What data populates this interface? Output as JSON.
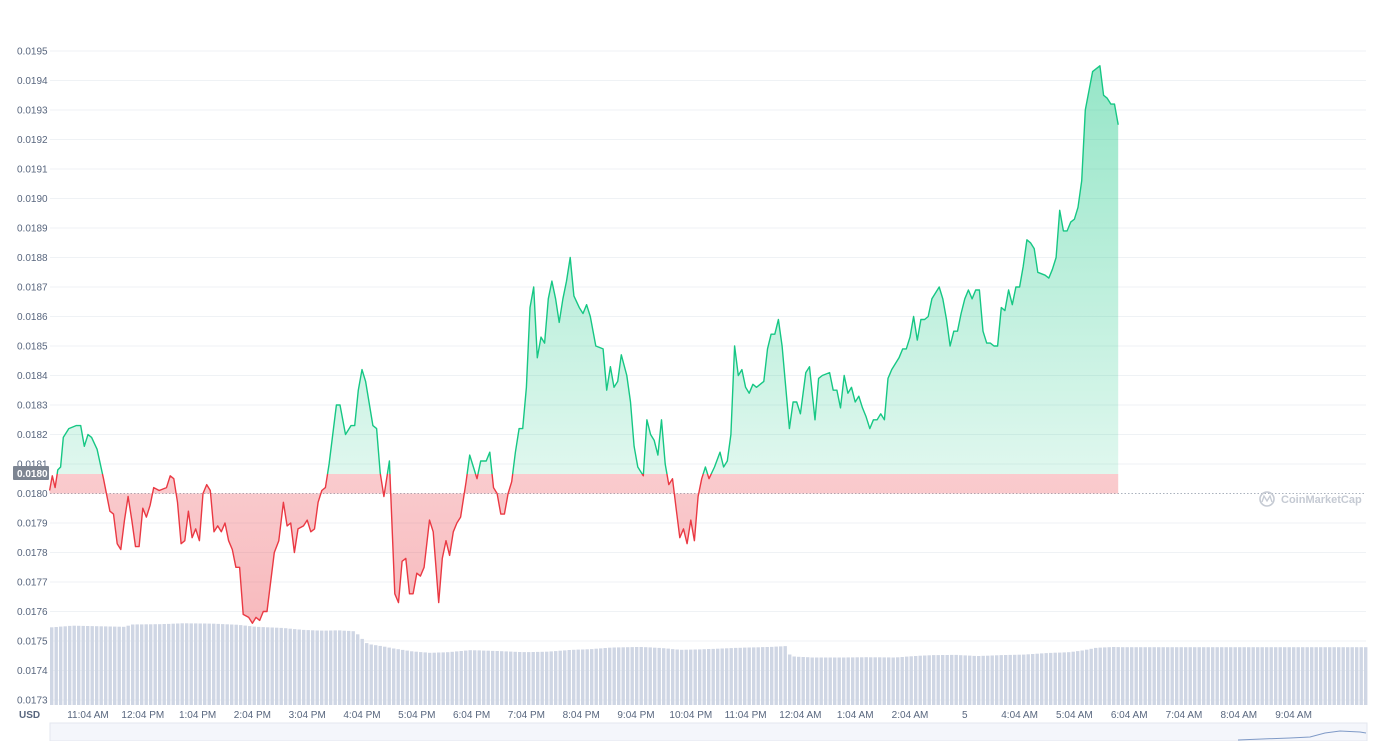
{
  "chart_data": {
    "type": "line",
    "y_unit": "USD",
    "ylim": [
      0.01722,
      0.01955
    ],
    "y_ticks": [
      "0.0173",
      "0.0174",
      "0.0175",
      "0.0176",
      "0.0177",
      "0.0178",
      "0.0179",
      "0.0180",
      "0.0181",
      "0.0182",
      "0.0183",
      "0.0184",
      "0.0185",
      "0.0186",
      "0.0187",
      "0.0188",
      "0.0189",
      "0.0190",
      "0.0191",
      "0.0192",
      "0.0193",
      "0.0194",
      "0.0195"
    ],
    "x_ticks": [
      "11:04 AM",
      "12:04 PM",
      "1:04 PM",
      "2:04 PM",
      "3:04 PM",
      "4:04 PM",
      "5:04 PM",
      "6:04 PM",
      "7:04 PM",
      "8:04 PM",
      "9:04 PM",
      "10:04 PM",
      "11:04 PM",
      "12:04 AM",
      "1:04 AM",
      "2:04 AM",
      "5",
      "4:04 AM",
      "5:04 AM",
      "6:04 AM",
      "7:04 AM",
      "8:04 AM",
      "9:04 AM"
    ],
    "baseline": 0.018,
    "baseline_label": "0.0180",
    "watermark": "CoinMarketCap",
    "grid": true,
    "colors": {
      "up": "#16c784",
      "down": "#ea3943",
      "volume": "#cfd6e4",
      "grid": "#eff2f5"
    },
    "price": [
      [
        "10:34",
        0.01801
      ],
      [
        "10:37",
        0.01806
      ],
      [
        "10:40",
        0.01802
      ],
      [
        "10:43",
        0.01808
      ],
      [
        "10:46",
        0.01809
      ],
      [
        "10:49",
        0.01819
      ],
      [
        "10:55",
        0.01822
      ],
      [
        "11:03",
        0.01823
      ],
      [
        "11:08",
        0.01823
      ],
      [
        "11:12",
        0.01816
      ],
      [
        "11:16",
        0.0182
      ],
      [
        "11:20",
        0.01819
      ],
      [
        "11:26",
        0.01815
      ],
      [
        "11:33",
        0.01805
      ],
      [
        "11:40",
        0.01794
      ],
      [
        "11:44",
        0.01793
      ],
      [
        "11:48",
        0.01783
      ],
      [
        "11:52",
        0.01781
      ],
      [
        "11:56",
        0.01791
      ],
      [
        "12:00",
        0.01799
      ],
      [
        "12:04",
        0.01791
      ],
      [
        "12:08",
        0.01782
      ],
      [
        "12:12",
        0.01782
      ],
      [
        "12:16",
        0.01795
      ],
      [
        "12:20",
        0.01792
      ],
      [
        "12:24",
        0.01796
      ],
      [
        "12:28",
        0.01802
      ],
      [
        "12:34",
        0.01801
      ],
      [
        "12:42",
        0.01802
      ],
      [
        "12:46",
        0.01806
      ],
      [
        "12:50",
        0.01805
      ],
      [
        "12:54",
        0.01797
      ],
      [
        "12:58",
        0.01783
      ],
      [
        "13:02",
        0.01784
      ],
      [
        "13:06",
        0.01794
      ],
      [
        "13:10",
        0.01785
      ],
      [
        "13:14",
        0.01788
      ],
      [
        "13:18",
        0.01784
      ],
      [
        "13:22",
        0.018
      ],
      [
        "13:26",
        0.01803
      ],
      [
        "13:30",
        0.01801
      ],
      [
        "13:34",
        0.01787
      ],
      [
        "13:38",
        0.01789
      ],
      [
        "13:42",
        0.01787
      ],
      [
        "13:46",
        0.0179
      ],
      [
        "13:50",
        0.01784
      ],
      [
        "13:54",
        0.01781
      ],
      [
        "13:58",
        0.01775
      ],
      [
        "14:02",
        0.01775
      ],
      [
        "14:06",
        0.01759
      ],
      [
        "14:12",
        0.01758
      ],
      [
        "14:16",
        0.01756
      ],
      [
        "14:20",
        0.01758
      ],
      [
        "14:24",
        0.01757
      ],
      [
        "14:28",
        0.0176
      ],
      [
        "14:32",
        0.0176
      ],
      [
        "14:40",
        0.0178
      ],
      [
        "14:45",
        0.01784
      ],
      [
        "14:50",
        0.01797
      ],
      [
        "14:54",
        0.01789
      ],
      [
        "14:58",
        0.0179
      ],
      [
        "15:02",
        0.0178
      ],
      [
        "15:06",
        0.01788
      ],
      [
        "15:12",
        0.01789
      ],
      [
        "15:16",
        0.01791
      ],
      [
        "15:20",
        0.01787
      ],
      [
        "15:24",
        0.01788
      ],
      [
        "15:28",
        0.01797
      ],
      [
        "15:32",
        0.01801
      ],
      [
        "15:36",
        0.01802
      ],
      [
        "15:40",
        0.0181
      ],
      [
        "15:48",
        0.0183
      ],
      [
        "15:52",
        0.0183
      ],
      [
        "15:58",
        0.0182
      ],
      [
        "16:04",
        0.01823
      ],
      [
        "16:08",
        0.01823
      ],
      [
        "16:12",
        0.01835
      ],
      [
        "16:16",
        0.01842
      ],
      [
        "16:20",
        0.01838
      ],
      [
        "16:28",
        0.01823
      ],
      [
        "16:32",
        0.01822
      ],
      [
        "16:36",
        0.01807
      ],
      [
        "16:40",
        0.01799
      ],
      [
        "16:46",
        0.01811
      ],
      [
        "16:52",
        0.01766
      ],
      [
        "16:56",
        0.01763
      ],
      [
        "17:00",
        0.01777
      ],
      [
        "17:04",
        0.01778
      ],
      [
        "17:08",
        0.01766
      ],
      [
        "17:12",
        0.01766
      ],
      [
        "17:16",
        0.01773
      ],
      [
        "17:20",
        0.01772
      ],
      [
        "17:24",
        0.01775
      ],
      [
        "17:30",
        0.01791
      ],
      [
        "17:34",
        0.01787
      ],
      [
        "17:40",
        0.01763
      ],
      [
        "17:44",
        0.01778
      ],
      [
        "17:48",
        0.01784
      ],
      [
        "17:52",
        0.01779
      ],
      [
        "17:56",
        0.01787
      ],
      [
        "18:00",
        0.0179
      ],
      [
        "18:04",
        0.01792
      ],
      [
        "18:10",
        0.01804
      ],
      [
        "18:14",
        0.01813
      ],
      [
        "18:18",
        0.01809
      ],
      [
        "18:22",
        0.01805
      ],
      [
        "18:26",
        0.01811
      ],
      [
        "18:32",
        0.01811
      ],
      [
        "18:36",
        0.01814
      ],
      [
        "18:40",
        0.01802
      ],
      [
        "18:44",
        0.018
      ],
      [
        "18:48",
        0.01793
      ],
      [
        "18:52",
        0.01793
      ],
      [
        "18:56",
        0.018
      ],
      [
        "19:00",
        0.01804
      ],
      [
        "19:04",
        0.01814
      ],
      [
        "19:08",
        0.01822
      ],
      [
        "19:12",
        0.01822
      ],
      [
        "19:16",
        0.01836
      ],
      [
        "19:20",
        0.01863
      ],
      [
        "19:24",
        0.0187
      ],
      [
        "19:28",
        0.01846
      ],
      [
        "19:32",
        0.01853
      ],
      [
        "19:36",
        0.01851
      ],
      [
        "19:40",
        0.01866
      ],
      [
        "19:44",
        0.01872
      ],
      [
        "19:48",
        0.01866
      ],
      [
        "19:52",
        0.01858
      ],
      [
        "19:56",
        0.01866
      ],
      [
        "20:00",
        0.01872
      ],
      [
        "20:04",
        0.0188
      ],
      [
        "20:08",
        0.01867
      ],
      [
        "20:14",
        0.01863
      ],
      [
        "20:18",
        0.01861
      ],
      [
        "20:22",
        0.01864
      ],
      [
        "20:26",
        0.0186
      ],
      [
        "20:32",
        0.0185
      ],
      [
        "20:40",
        0.01849
      ],
      [
        "20:44",
        0.01835
      ],
      [
        "20:48",
        0.01843
      ],
      [
        "20:52",
        0.01836
      ],
      [
        "20:56",
        0.01838
      ],
      [
        "21:00",
        0.01847
      ],
      [
        "21:06",
        0.0184
      ],
      [
        "21:10",
        0.01831
      ],
      [
        "21:14",
        0.01816
      ],
      [
        "21:18",
        0.01809
      ],
      [
        "21:24",
        0.01806
      ],
      [
        "21:28",
        0.01825
      ],
      [
        "21:32",
        0.0182
      ],
      [
        "21:36",
        0.01818
      ],
      [
        "21:40",
        0.01813
      ],
      [
        "21:44",
        0.01825
      ],
      [
        "21:48",
        0.0181
      ],
      [
        "21:52",
        0.01803
      ],
      [
        "21:56",
        0.01805
      ],
      [
        "22:00",
        0.01795
      ],
      [
        "22:04",
        0.01785
      ],
      [
        "22:08",
        0.01788
      ],
      [
        "22:12",
        0.01783
      ],
      [
        "22:16",
        0.01791
      ],
      [
        "22:20",
        0.01784
      ],
      [
        "22:24",
        0.01799
      ],
      [
        "22:28",
        0.01805
      ],
      [
        "22:32",
        0.01809
      ],
      [
        "22:36",
        0.01805
      ],
      [
        "22:42",
        0.01809
      ],
      [
        "22:48",
        0.01814
      ],
      [
        "22:52",
        0.01809
      ],
      [
        "22:56",
        0.01811
      ],
      [
        "23:00",
        0.0182
      ],
      [
        "23:04",
        0.0185
      ],
      [
        "23:08",
        0.0184
      ],
      [
        "23:12",
        0.01842
      ],
      [
        "23:16",
        0.01836
      ],
      [
        "23:20",
        0.01834
      ],
      [
        "23:24",
        0.01837
      ],
      [
        "23:28",
        0.01836
      ],
      [
        "23:36",
        0.01838
      ],
      [
        "23:40",
        0.01849
      ],
      [
        "23:44",
        0.01854
      ],
      [
        "23:48",
        0.01854
      ],
      [
        "23:52",
        0.01859
      ],
      [
        "23:56",
        0.0185
      ],
      [
        "24:04",
        0.01822
      ],
      [
        "24:08",
        0.01831
      ],
      [
        "24:12",
        0.01831
      ],
      [
        "24:16",
        0.01827
      ],
      [
        "24:22",
        0.01841
      ],
      [
        "24:26",
        0.01843
      ],
      [
        "24:32",
        0.01825
      ],
      [
        "24:36",
        0.01839
      ],
      [
        "24:40",
        0.0184
      ],
      [
        "24:48",
        0.01841
      ],
      [
        "24:52",
        0.01835
      ],
      [
        "24:56",
        0.01835
      ],
      [
        "25:00",
        0.01829
      ],
      [
        "25:04",
        0.0184
      ],
      [
        "25:08",
        0.01834
      ],
      [
        "25:12",
        0.01836
      ],
      [
        "25:16",
        0.01831
      ],
      [
        "25:20",
        0.01833
      ],
      [
        "25:24",
        0.01829
      ],
      [
        "25:28",
        0.01826
      ],
      [
        "25:32",
        0.01822
      ],
      [
        "25:36",
        0.01825
      ],
      [
        "25:40",
        0.01825
      ],
      [
        "25:44",
        0.01827
      ],
      [
        "25:48",
        0.01825
      ],
      [
        "25:52",
        0.01839
      ],
      [
        "25:56",
        0.01842
      ],
      [
        "26:04",
        0.01846
      ],
      [
        "26:08",
        0.01849
      ],
      [
        "26:12",
        0.01849
      ],
      [
        "26:16",
        0.01853
      ],
      [
        "26:20",
        0.0186
      ],
      [
        "26:24",
        0.01852
      ],
      [
        "26:28",
        0.01859
      ],
      [
        "26:32",
        0.01859
      ],
      [
        "26:36",
        0.0186
      ],
      [
        "26:40",
        0.01866
      ],
      [
        "26:48",
        0.0187
      ],
      [
        "26:52",
        0.01866
      ],
      [
        "26:56",
        0.01859
      ],
      [
        "27:00",
        0.0185
      ],
      [
        "27:04",
        0.01855
      ],
      [
        "27:08",
        0.01855
      ],
      [
        "27:12",
        0.01861
      ],
      [
        "27:16",
        0.01866
      ],
      [
        "27:20",
        0.01869
      ],
      [
        "27:24",
        0.01866
      ],
      [
        "27:28",
        0.01869
      ],
      [
        "27:32",
        0.01869
      ],
      [
        "27:36",
        0.01855
      ],
      [
        "27:40",
        0.01851
      ],
      [
        "27:44",
        0.01851
      ],
      [
        "27:48",
        0.0185
      ],
      [
        "27:52",
        0.0185
      ],
      [
        "27:56",
        0.01863
      ],
      [
        "28:00",
        0.01862
      ],
      [
        "28:04",
        0.01869
      ],
      [
        "28:08",
        0.01864
      ],
      [
        "28:12",
        0.0187
      ],
      [
        "28:16",
        0.0187
      ],
      [
        "28:20",
        0.01877
      ],
      [
        "28:24",
        0.01886
      ],
      [
        "28:28",
        0.01885
      ],
      [
        "28:32",
        0.01883
      ],
      [
        "28:36",
        0.01875
      ],
      [
        "28:44",
        0.01874
      ],
      [
        "28:48",
        0.01873
      ],
      [
        "28:52",
        0.01876
      ],
      [
        "28:56",
        0.0188
      ],
      [
        "29:00",
        0.01896
      ],
      [
        "29:04",
        0.01889
      ],
      [
        "29:08",
        0.01889
      ],
      [
        "29:12",
        0.01892
      ],
      [
        "29:16",
        0.01893
      ],
      [
        "29:20",
        0.01897
      ],
      [
        "29:24",
        0.01906
      ],
      [
        "29:28",
        0.0193
      ],
      [
        "29:36",
        0.01943
      ],
      [
        "29:44",
        0.01945
      ],
      [
        "29:48",
        0.01935
      ],
      [
        "29:52",
        0.01934
      ],
      [
        "29:56",
        0.01932
      ],
      [
        "30:00",
        0.01932
      ],
      [
        "30:04",
        0.01925
      ]
    ],
    "volume": [
      [
        "10:30",
        0.017545
      ],
      [
        "11:00",
        0.017552
      ],
      [
        "11:30",
        0.01755
      ],
      [
        "11:55",
        0.017548
      ],
      [
        "12:05",
        0.017556
      ],
      [
        "12:35",
        0.017557
      ],
      [
        "13:00",
        0.01756
      ],
      [
        "13:30",
        0.017559
      ],
      [
        "14:00",
        0.017555
      ],
      [
        "14:20",
        0.017548
      ],
      [
        "14:50",
        0.017544
      ],
      [
        "15:10",
        0.017538
      ],
      [
        "15:30",
        0.017535
      ],
      [
        "15:50",
        0.017536
      ],
      [
        "16:08",
        0.017533
      ],
      [
        "16:15",
        0.01751
      ],
      [
        "16:22",
        0.01749
      ],
      [
        "16:35",
        0.017484
      ],
      [
        "16:50",
        0.017475
      ],
      [
        "17:10",
        0.017465
      ],
      [
        "17:30",
        0.01746
      ],
      [
        "17:50",
        0.017462
      ],
      [
        "18:15",
        0.017469
      ],
      [
        "18:45",
        0.017466
      ],
      [
        "19:15",
        0.017462
      ],
      [
        "19:40",
        0.017464
      ],
      [
        "20:05",
        0.01747
      ],
      [
        "20:25",
        0.017472
      ],
      [
        "20:50",
        0.017478
      ],
      [
        "21:20",
        0.01748
      ],
      [
        "21:45",
        0.017476
      ],
      [
        "22:05",
        0.01747
      ],
      [
        "22:30",
        0.017472
      ],
      [
        "23:00",
        0.017476
      ],
      [
        "23:20",
        0.017478
      ],
      [
        "23:45",
        0.01748
      ],
      [
        "24:00",
        0.017483
      ],
      [
        "24:05",
        0.017448
      ],
      [
        "24:30",
        0.017444
      ],
      [
        "25:00",
        0.017444
      ],
      [
        "25:30",
        0.017445
      ],
      [
        "26:00",
        0.017444
      ],
      [
        "26:20",
        0.017449
      ],
      [
        "26:40",
        0.017452
      ],
      [
        "27:05",
        0.017453
      ],
      [
        "27:30",
        0.017449
      ],
      [
        "27:55",
        0.017452
      ],
      [
        "28:20",
        0.017454
      ],
      [
        "28:45",
        0.017459
      ],
      [
        "29:10",
        0.017462
      ],
      [
        "29:25",
        0.017468
      ],
      [
        "29:40",
        0.017477
      ],
      [
        "30:00",
        0.01748
      ],
      [
        "30:05",
        0.017479
      ]
    ]
  }
}
